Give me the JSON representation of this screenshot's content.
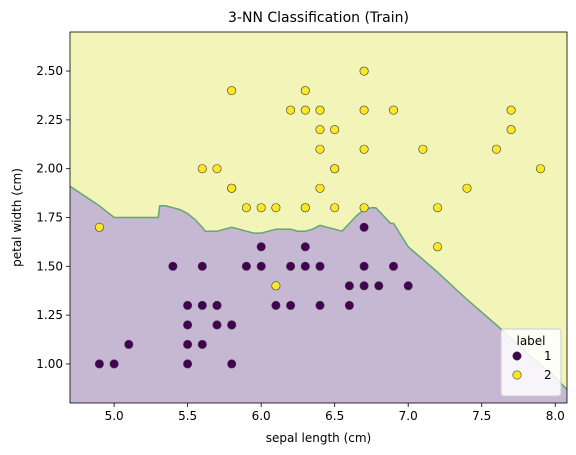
{
  "chart_data": {
    "type": "scatter",
    "title": "3-NN Classification (Train)",
    "xlabel": "sepal length (cm)",
    "ylabel": "petal width (cm)",
    "xlim": [
      4.7,
      8.08
    ],
    "ylim": [
      0.8,
      2.7
    ],
    "xticks": [
      "5.0",
      "5.5",
      "6.0",
      "6.5",
      "7.0",
      "7.5",
      "8.0"
    ],
    "yticks": [
      "1.00",
      "1.25",
      "1.50",
      "1.75",
      "2.00",
      "2.25",
      "2.50"
    ],
    "grid": false,
    "legend": {
      "title": "label",
      "position": "lower-right",
      "entries": [
        "1",
        "2"
      ]
    },
    "colors": {
      "class1_point": "#440154",
      "class2_point": "#fde725",
      "class1_region": "#c6b8d3",
      "class2_region": "#f2f4b8",
      "boundary": "#5fa870"
    },
    "decision_boundary": [
      [
        4.7,
        1.91
      ],
      [
        4.8,
        1.86
      ],
      [
        4.9,
        1.81
      ],
      [
        5.0,
        1.75
      ],
      [
        5.1,
        1.75
      ],
      [
        5.2,
        1.75
      ],
      [
        5.3,
        1.75
      ],
      [
        5.31,
        1.81
      ],
      [
        5.35,
        1.81
      ],
      [
        5.4,
        1.8
      ],
      [
        5.45,
        1.79
      ],
      [
        5.5,
        1.77
      ],
      [
        5.55,
        1.74
      ],
      [
        5.6,
        1.7
      ],
      [
        5.62,
        1.68
      ],
      [
        5.7,
        1.68
      ],
      [
        5.75,
        1.69
      ],
      [
        5.8,
        1.7
      ],
      [
        5.85,
        1.69
      ],
      [
        5.9,
        1.68
      ],
      [
        5.95,
        1.67
      ],
      [
        6.0,
        1.67
      ],
      [
        6.05,
        1.68
      ],
      [
        6.1,
        1.69
      ],
      [
        6.15,
        1.69
      ],
      [
        6.2,
        1.69
      ],
      [
        6.25,
        1.68
      ],
      [
        6.3,
        1.68
      ],
      [
        6.35,
        1.69
      ],
      [
        6.4,
        1.71
      ],
      [
        6.45,
        1.7
      ],
      [
        6.5,
        1.69
      ],
      [
        6.55,
        1.68
      ],
      [
        6.6,
        1.72
      ],
      [
        6.65,
        1.76
      ],
      [
        6.7,
        1.79
      ],
      [
        6.75,
        1.8
      ],
      [
        6.78,
        1.8
      ],
      [
        6.83,
        1.76
      ],
      [
        6.88,
        1.72
      ],
      [
        6.9,
        1.72
      ],
      [
        7.0,
        1.6
      ],
      [
        7.2,
        1.47
      ],
      [
        7.4,
        1.33
      ],
      [
        7.6,
        1.2
      ],
      [
        7.8,
        1.06
      ],
      [
        8.0,
        0.93
      ],
      [
        8.08,
        0.87
      ]
    ],
    "series": [
      {
        "name": "1",
        "points": [
          [
            4.9,
            1.0
          ],
          [
            5.0,
            1.0
          ],
          [
            5.1,
            1.1
          ],
          [
            5.4,
            1.5
          ],
          [
            5.5,
            1.3
          ],
          [
            5.5,
            1.2
          ],
          [
            5.5,
            1.1
          ],
          [
            5.5,
            1.0
          ],
          [
            5.6,
            1.5
          ],
          [
            5.6,
            1.3
          ],
          [
            5.6,
            1.1
          ],
          [
            5.7,
            1.3
          ],
          [
            5.7,
            1.2
          ],
          [
            5.7,
            1.3
          ],
          [
            5.8,
            1.2
          ],
          [
            5.8,
            1.0
          ],
          [
            5.8,
            1.2
          ],
          [
            5.9,
            1.5
          ],
          [
            6.0,
            1.6
          ],
          [
            6.0,
            1.5
          ],
          [
            6.1,
            1.3
          ],
          [
            6.2,
            1.5
          ],
          [
            6.2,
            1.3
          ],
          [
            6.3,
            1.6
          ],
          [
            6.3,
            1.5
          ],
          [
            6.4,
            1.5
          ],
          [
            6.4,
            1.3
          ],
          [
            6.6,
            1.4
          ],
          [
            6.6,
            1.3
          ],
          [
            6.7,
            1.7
          ],
          [
            6.7,
            1.5
          ],
          [
            6.7,
            1.4
          ],
          [
            6.8,
            1.4
          ],
          [
            6.9,
            1.5
          ],
          [
            7.0,
            1.4
          ]
        ]
      },
      {
        "name": "2",
        "points": [
          [
            4.9,
            1.7
          ],
          [
            5.6,
            2.0
          ],
          [
            5.7,
            2.0
          ],
          [
            5.8,
            2.4
          ],
          [
            5.8,
            1.9
          ],
          [
            5.8,
            1.9
          ],
          [
            5.9,
            1.8
          ],
          [
            6.0,
            1.8
          ],
          [
            6.1,
            1.8
          ],
          [
            6.1,
            1.4
          ],
          [
            6.2,
            2.3
          ],
          [
            6.3,
            2.4
          ],
          [
            6.3,
            2.3
          ],
          [
            6.3,
            1.8
          ],
          [
            6.3,
            1.8
          ],
          [
            6.4,
            2.3
          ],
          [
            6.4,
            2.2
          ],
          [
            6.4,
            2.1
          ],
          [
            6.4,
            1.9
          ],
          [
            6.5,
            2.2
          ],
          [
            6.5,
            2.0
          ],
          [
            6.5,
            2.0
          ],
          [
            6.5,
            1.8
          ],
          [
            6.7,
            2.5
          ],
          [
            6.7,
            2.3
          ],
          [
            6.7,
            2.1
          ],
          [
            6.7,
            1.8
          ],
          [
            6.9,
            2.3
          ],
          [
            7.1,
            2.1
          ],
          [
            7.2,
            1.8
          ],
          [
            7.2,
            1.6
          ],
          [
            7.4,
            1.9
          ],
          [
            7.6,
            2.1
          ],
          [
            7.7,
            2.3
          ],
          [
            7.7,
            2.2
          ],
          [
            7.9,
            2.0
          ]
        ]
      }
    ]
  }
}
